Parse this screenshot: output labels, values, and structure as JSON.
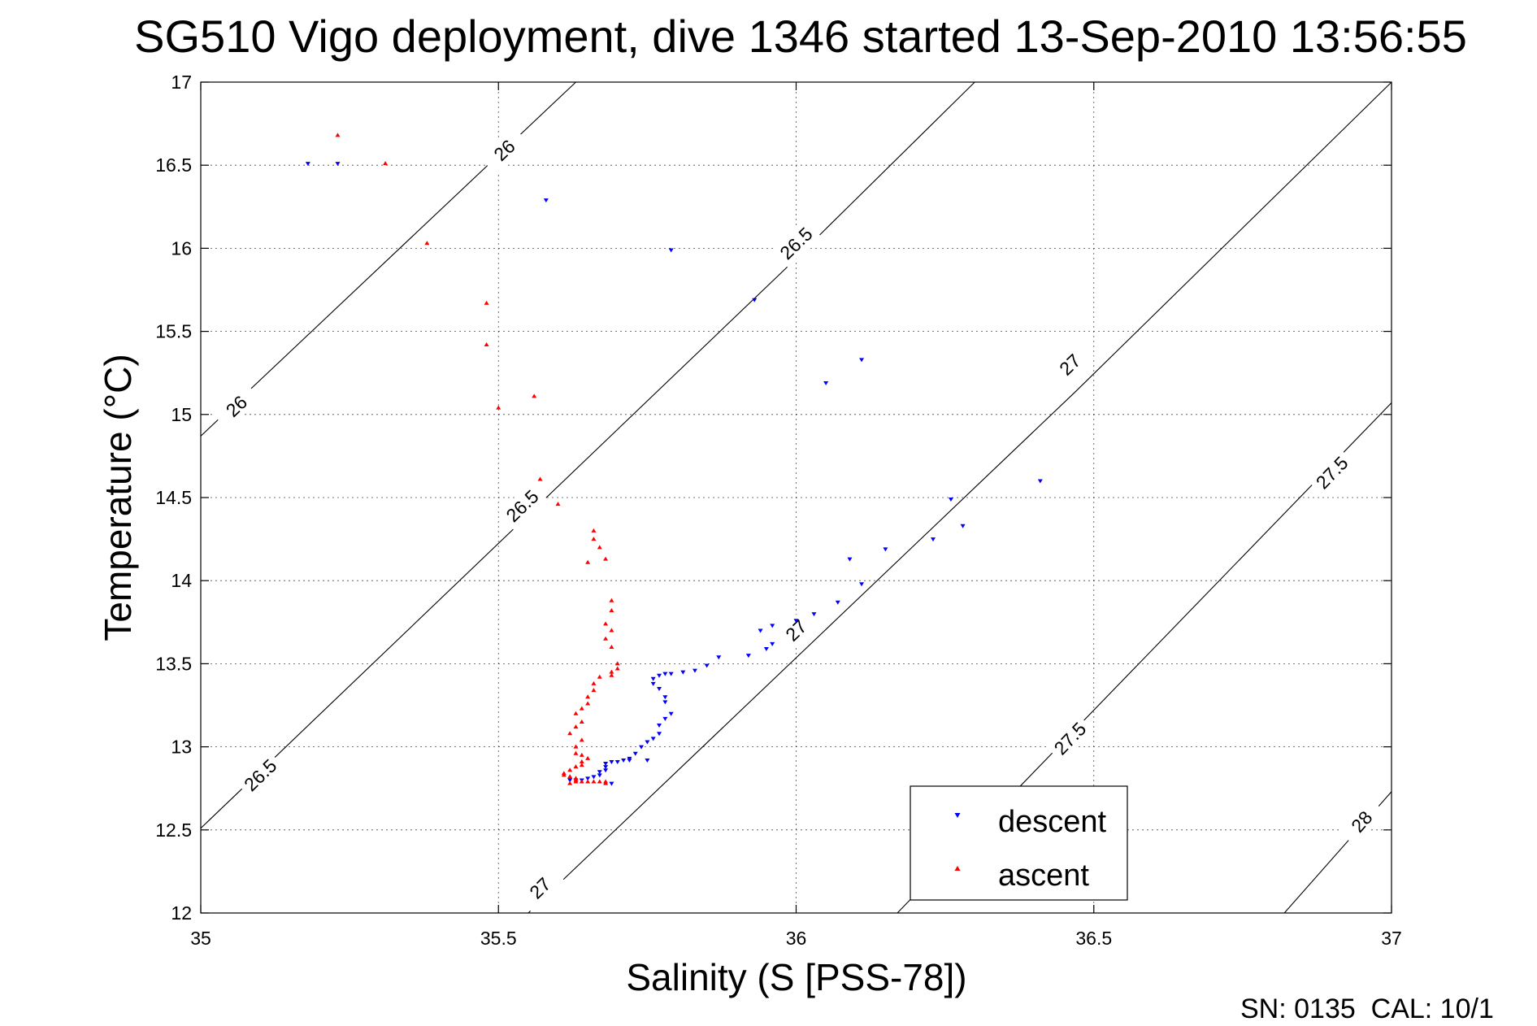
{
  "chart_data": {
    "type": "scatter",
    "title": "SG510 Vigo deployment, dive 1346 started 13-Sep-2010 13:56:55",
    "xlabel": "Salinity (S [PSS-78])",
    "ylabel": "Temperature (°C)",
    "xlim": [
      35,
      37
    ],
    "ylim": [
      12,
      17
    ],
    "xticks": [
      35,
      35.5,
      36,
      36.5,
      37
    ],
    "xtick_labels": [
      "35",
      "35.5",
      "36",
      "36.5",
      "37"
    ],
    "yticks": [
      12,
      12.5,
      13,
      13.5,
      14,
      14.5,
      15,
      15.5,
      16,
      16.5,
      17
    ],
    "ytick_labels": [
      "12",
      "12.5",
      "13",
      "13.5",
      "14",
      "14.5",
      "15",
      "15.5",
      "16",
      "16.5",
      "17"
    ],
    "grid": true,
    "legend_position": "bottom-right",
    "footer": "SN: 0135  CAL: 10/1",
    "density_contours": [
      {
        "label": "26",
        "points": [
          [
            35.0,
            14.87
          ],
          [
            35.63,
            17.0
          ]
        ],
        "label_positions": [
          [
            35.06,
            15.05
          ],
          [
            35.51,
            16.59
          ]
        ]
      },
      {
        "label": "26.5",
        "points": [
          [
            35.0,
            12.51
          ],
          [
            35.98,
            15.87
          ],
          [
            36.3,
            17.0
          ]
        ],
        "label_positions": [
          [
            35.1,
            12.83
          ],
          [
            35.54,
            14.45
          ],
          [
            36.0,
            16.03
          ]
        ]
      },
      {
        "label": "27",
        "points": [
          [
            35.55,
            12.0
          ],
          [
            36.47,
            15.14
          ],
          [
            37.0,
            17.0
          ]
        ],
        "label_positions": [
          [
            35.57,
            12.15
          ],
          [
            36.0,
            13.7
          ],
          [
            36.46,
            15.3
          ]
        ]
      },
      {
        "label": "27.5",
        "points": [
          [
            36.17,
            12.0
          ],
          [
            37.0,
            15.07
          ]
        ],
        "label_positions": [
          [
            36.46,
            13.05
          ],
          [
            36.9,
            14.65
          ]
        ]
      },
      {
        "label": "28",
        "points": [
          [
            36.82,
            12.0
          ],
          [
            37.0,
            12.73
          ]
        ],
        "label_positions": [
          [
            36.95,
            12.55
          ]
        ]
      }
    ],
    "series": [
      {
        "name": "descent",
        "color": "#0000ff",
        "marker": "triangle-down",
        "points": [
          [
            35.18,
            16.51
          ],
          [
            35.23,
            16.51
          ],
          [
            35.58,
            16.29
          ],
          [
            35.79,
            15.99
          ],
          [
            35.93,
            15.69
          ],
          [
            36.05,
            15.19
          ],
          [
            36.11,
            15.33
          ],
          [
            36.41,
            14.6
          ],
          [
            36.26,
            14.49
          ],
          [
            36.28,
            14.33
          ],
          [
            36.23,
            14.25
          ],
          [
            36.15,
            14.19
          ],
          [
            36.09,
            14.13
          ],
          [
            36.11,
            13.98
          ],
          [
            36.07,
            13.87
          ],
          [
            36.03,
            13.8
          ],
          [
            36.0,
            13.76
          ],
          [
            35.96,
            13.73
          ],
          [
            35.94,
            13.7
          ],
          [
            35.96,
            13.62
          ],
          [
            35.95,
            13.59
          ],
          [
            35.92,
            13.55
          ],
          [
            35.87,
            13.54
          ],
          [
            35.85,
            13.49
          ],
          [
            35.83,
            13.46
          ],
          [
            35.81,
            13.45
          ],
          [
            35.79,
            13.44
          ],
          [
            35.78,
            13.44
          ],
          [
            35.77,
            13.43
          ],
          [
            35.76,
            13.41
          ],
          [
            35.76,
            13.38
          ],
          [
            35.77,
            13.35
          ],
          [
            35.78,
            13.3
          ],
          [
            35.78,
            13.27
          ],
          [
            35.79,
            13.2
          ],
          [
            35.78,
            13.17
          ],
          [
            35.77,
            13.13
          ],
          [
            35.77,
            13.08
          ],
          [
            35.76,
            13.05
          ],
          [
            35.75,
            13.03
          ],
          [
            35.74,
            13.0
          ],
          [
            35.73,
            12.96
          ],
          [
            35.72,
            12.93
          ],
          [
            35.71,
            12.92
          ],
          [
            35.7,
            12.91
          ],
          [
            35.69,
            12.91
          ],
          [
            35.68,
            12.9
          ],
          [
            35.68,
            12.88
          ],
          [
            35.68,
            12.86
          ],
          [
            35.67,
            12.85
          ],
          [
            35.67,
            12.83
          ],
          [
            35.66,
            12.82
          ],
          [
            35.65,
            12.81
          ],
          [
            35.64,
            12.8
          ],
          [
            35.63,
            12.8
          ],
          [
            35.62,
            12.8
          ],
          [
            35.75,
            12.92
          ],
          [
            35.72,
            12.92
          ],
          [
            35.69,
            12.78
          ]
        ]
      },
      {
        "name": "ascent",
        "color": "#ff0000",
        "marker": "triangle-up",
        "points": [
          [
            35.23,
            16.68
          ],
          [
            35.31,
            16.51
          ],
          [
            35.38,
            16.03
          ],
          [
            35.48,
            15.67
          ],
          [
            35.48,
            15.42
          ],
          [
            35.5,
            15.04
          ],
          [
            35.56,
            15.11
          ],
          [
            35.57,
            14.61
          ],
          [
            35.6,
            14.46
          ],
          [
            35.66,
            14.3
          ],
          [
            35.66,
            14.25
          ],
          [
            35.67,
            14.2
          ],
          [
            35.65,
            14.11
          ],
          [
            35.68,
            14.13
          ],
          [
            35.69,
            13.88
          ],
          [
            35.69,
            13.82
          ],
          [
            35.68,
            13.74
          ],
          [
            35.69,
            13.7
          ],
          [
            35.68,
            13.65
          ],
          [
            35.69,
            13.6
          ],
          [
            35.7,
            13.5
          ],
          [
            35.7,
            13.47
          ],
          [
            35.69,
            13.45
          ],
          [
            35.69,
            13.43
          ],
          [
            35.67,
            13.42
          ],
          [
            35.66,
            13.38
          ],
          [
            35.66,
            13.34
          ],
          [
            35.65,
            13.3
          ],
          [
            35.65,
            13.26
          ],
          [
            35.64,
            13.23
          ],
          [
            35.63,
            13.2
          ],
          [
            35.64,
            13.15
          ],
          [
            35.63,
            13.12
          ],
          [
            35.62,
            13.08
          ],
          [
            35.64,
            13.04
          ],
          [
            35.63,
            13.0
          ],
          [
            35.63,
            12.96
          ],
          [
            35.64,
            12.95
          ],
          [
            35.65,
            12.93
          ],
          [
            35.64,
            12.91
          ],
          [
            35.64,
            12.89
          ],
          [
            35.63,
            12.88
          ],
          [
            35.62,
            12.86
          ],
          [
            35.61,
            12.84
          ],
          [
            35.62,
            12.82
          ],
          [
            35.63,
            12.8
          ],
          [
            35.63,
            12.79
          ],
          [
            35.64,
            12.79
          ],
          [
            35.65,
            12.79
          ],
          [
            35.66,
            12.79
          ],
          [
            35.67,
            12.79
          ],
          [
            35.68,
            12.78
          ],
          [
            35.61,
            12.83
          ],
          [
            35.63,
            12.81
          ],
          [
            35.62,
            12.78
          ],
          [
            35.62,
            12.82
          ],
          [
            35.68,
            12.79
          ]
        ]
      }
    ]
  }
}
